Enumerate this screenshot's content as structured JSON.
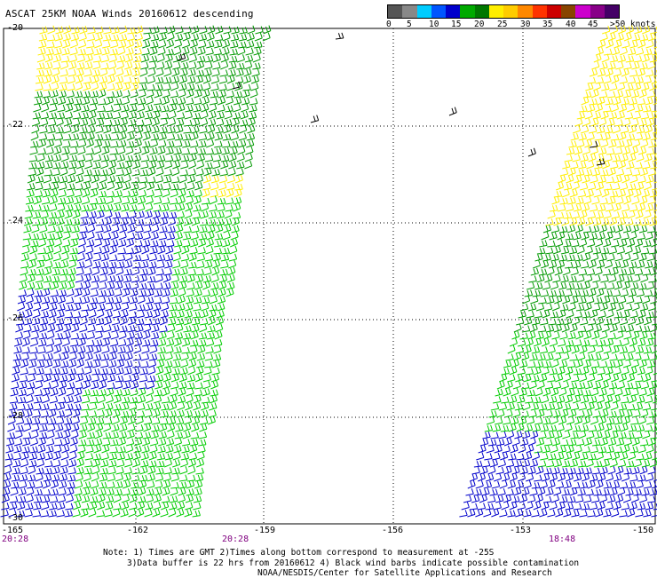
{
  "header": {
    "title": "ASCAT 25KM NOAA Winds 20160612 descending"
  },
  "color_scale": {
    "labels": [
      "0",
      "5",
      "10",
      "15",
      "20",
      "25",
      "30",
      "35",
      "40",
      "45",
      ">50 knots"
    ],
    "colors": [
      "#555555",
      "#888888",
      "#00ccff",
      "#0055ff",
      "#0000cc",
      "#00aa00",
      "#007700",
      "#ffee00",
      "#ffcc00",
      "#ff8800",
      "#ff3300",
      "#cc0000",
      "#884400",
      "#cc00cc",
      "#880088",
      "#440066"
    ]
  },
  "map": {
    "latitudes": [
      "-20",
      "-22",
      "-24",
      "-26",
      "-28",
      "-30"
    ],
    "longitudes": [
      "-165",
      "-162",
      "-159",
      "-156",
      "-153",
      "-150"
    ],
    "pass_times": [
      "20:28",
      "20:28",
      "18:48"
    ],
    "wind_colors": {
      "calm": "#0000cc",
      "light": "#00cc00",
      "moderate": "#009900",
      "fresh": "#ffee00",
      "contaminated": "#000000"
    }
  },
  "notes": {
    "line1": "Note: 1) Times are GMT 2)Times along bottom correspond to measurement at -25S",
    "line2": "3)Data buffer is 22 hrs from 20160612 4) Black wind barbs indicate possible contamination",
    "line3": "NOAA/NESDIS/Center for Satellite Applications and Research"
  }
}
